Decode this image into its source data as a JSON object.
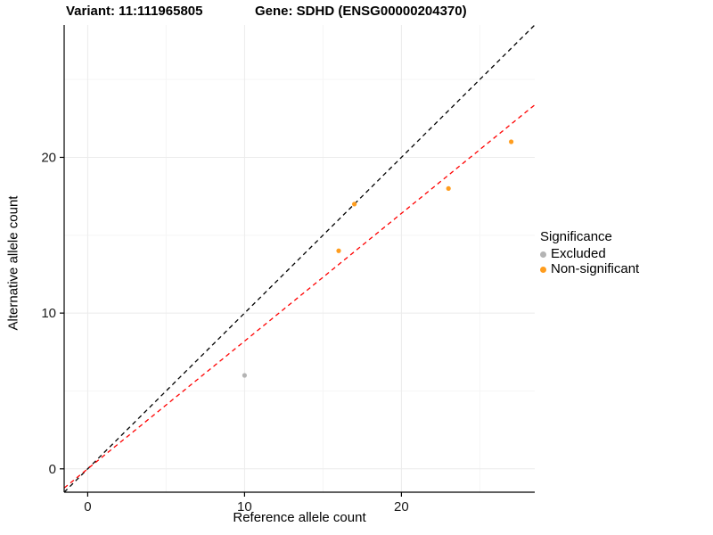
{
  "chart_data": {
    "type": "scatter",
    "titles": {
      "left": "Variant: 11:111965805",
      "right": "Gene: SDHD (ENSG00000204370)"
    },
    "xlabel": "Reference allele count",
    "ylabel": "Alternative allele count",
    "xlim": [
      -1.5,
      28.5
    ],
    "ylim": [
      -1.5,
      28.5
    ],
    "xticks": [
      0,
      10,
      20
    ],
    "yticks": [
      0,
      10,
      20
    ],
    "minor_ticks": [
      5,
      15,
      25
    ],
    "grid": true,
    "legend": {
      "title": "Significance",
      "position": "right",
      "items": [
        {
          "label": "Excluded",
          "color": "#b4b4b4"
        },
        {
          "label": "Non-significant",
          "color": "#ff9d1e"
        }
      ]
    },
    "series": [
      {
        "name": "Excluded",
        "color": "#b4b4b4",
        "points": [
          [
            10,
            6
          ]
        ]
      },
      {
        "name": "Non-significant",
        "color": "#ff9d1e",
        "points": [
          [
            16,
            14
          ],
          [
            17,
            17
          ],
          [
            23,
            18
          ],
          [
            27,
            21
          ]
        ]
      }
    ],
    "reference_lines": [
      {
        "name": "identity",
        "slope": 1.0,
        "intercept": 0,
        "color": "#000000",
        "dashed": true
      },
      {
        "name": "fit",
        "slope": 0.82,
        "intercept": 0,
        "color": "#ff0000",
        "dashed": true
      }
    ]
  }
}
